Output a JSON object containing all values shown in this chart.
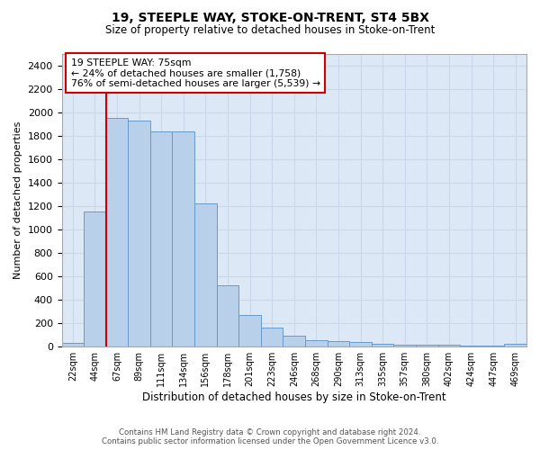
{
  "title1": "19, STEEPLE WAY, STOKE-ON-TRENT, ST4 5BX",
  "title2": "Size of property relative to detached houses in Stoke-on-Trent",
  "xlabel": "Distribution of detached houses by size in Stoke-on-Trent",
  "ylabel": "Number of detached properties",
  "bin_labels": [
    "22sqm",
    "44sqm",
    "67sqm",
    "89sqm",
    "111sqm",
    "134sqm",
    "156sqm",
    "178sqm",
    "201sqm",
    "223sqm",
    "246sqm",
    "268sqm",
    "290sqm",
    "313sqm",
    "335sqm",
    "357sqm",
    "380sqm",
    "402sqm",
    "424sqm",
    "447sqm",
    "469sqm"
  ],
  "bar_values": [
    30,
    1150,
    1950,
    1930,
    1840,
    1840,
    1220,
    520,
    270,
    160,
    90,
    50,
    45,
    40,
    20,
    15,
    10,
    10,
    5,
    5,
    20
  ],
  "bar_color": "#b8d0ea",
  "bar_edge_color": "#6699cc",
  "annotation_text_line1": "19 STEEPLE WAY: 75sqm",
  "annotation_text_line2": "← 24% of detached houses are smaller (1,758)",
  "annotation_text_line3": "76% of semi-detached houses are larger (5,539) →",
  "annotation_box_color": "#ffffff",
  "annotation_box_edge": "#cc0000",
  "red_line_color": "#cc0000",
  "grid_color": "#c8d8ea",
  "background_color": "#dce8f5",
  "ylim": [
    0,
    2500
  ],
  "yticks": [
    0,
    200,
    400,
    600,
    800,
    1000,
    1200,
    1400,
    1600,
    1800,
    2000,
    2200,
    2400
  ],
  "footer1": "Contains HM Land Registry data © Crown copyright and database right 2024.",
  "footer2": "Contains public sector information licensed under the Open Government Licence v3.0."
}
